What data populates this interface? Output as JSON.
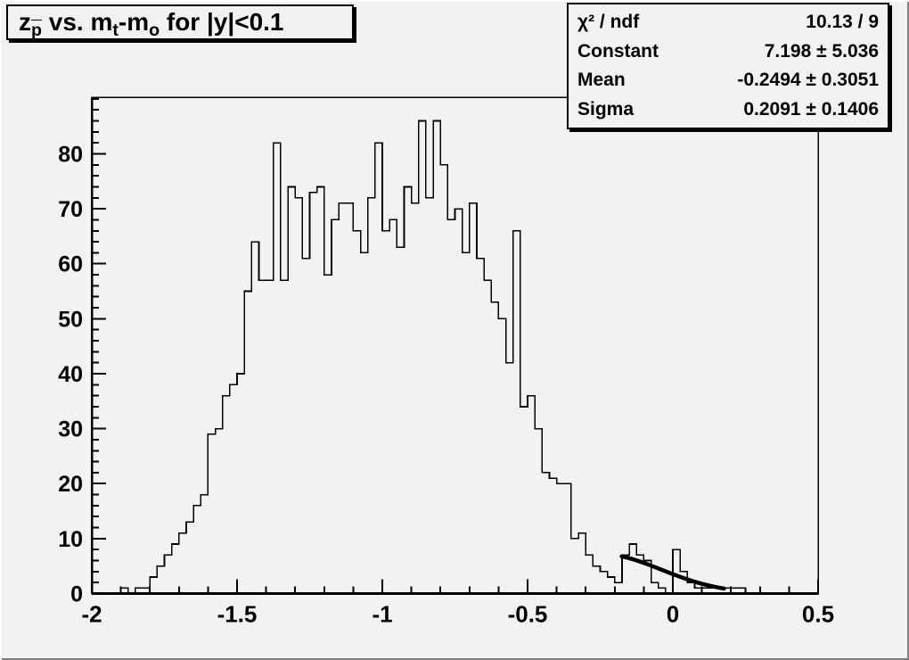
{
  "window": {
    "background": "#f2f2f2",
    "box_fill": "#f2f2f2",
    "line_color": "#000000"
  },
  "title": {
    "plain": "z_p vs. m_t-m_o for |y|<0.1",
    "parts": [
      {
        "text": "z"
      },
      {
        "text": "p",
        "sub": true,
        "bar": true
      },
      {
        "text": " vs. m"
      },
      {
        "text": "t",
        "sub": true
      },
      {
        "text": "-m"
      },
      {
        "text": "o",
        "sub": true
      },
      {
        "text": " for |y|<0.1"
      }
    ]
  },
  "stats_box": {
    "rows": [
      {
        "label": "χ² / ndf",
        "value": "10.13 / 9"
      },
      {
        "label": "Constant",
        "value": "7.198 ± 5.036"
      },
      {
        "label": "Mean",
        "value": "-0.2494 ± 0.3051"
      },
      {
        "label": "Sigma",
        "value": "0.2091 ± 0.1406"
      }
    ]
  },
  "chart_data": {
    "type": "bar",
    "subtype": "step-histogram-with-gaussian-fit",
    "title": "z_p vs. m_t-m_o for |y|<0.1",
    "xlabel": "",
    "ylabel": "",
    "xlim": [
      -2.0,
      0.5
    ],
    "ylim": [
      0,
      90.3
    ],
    "grid": false,
    "x_start": -2.0,
    "bin_width": 0.025,
    "n_bins": 100,
    "values": [
      0,
      0,
      0,
      0,
      1,
      0,
      1,
      1,
      3,
      5,
      7,
      9,
      11,
      13,
      16,
      18,
      29,
      30,
      36,
      38,
      40,
      55,
      64,
      57,
      57,
      82,
      57,
      74,
      72,
      61,
      73,
      74,
      58,
      68,
      71,
      71,
      66,
      62,
      72,
      82,
      66,
      68,
      63,
      74,
      71,
      86,
      72,
      86,
      78,
      68,
      70,
      62,
      71,
      61,
      57,
      53,
      50,
      42,
      66,
      34,
      36,
      30,
      22,
      21,
      20,
      20,
      10,
      11,
      7,
      5,
      4,
      3,
      2,
      7,
      9,
      7,
      6,
      2,
      1,
      0,
      8,
      4,
      2,
      1,
      1,
      1,
      1,
      1,
      1,
      1,
      0,
      0,
      0,
      0,
      0,
      0,
      0,
      0,
      0,
      0
    ],
    "x_major_ticks": [
      -2,
      -1.5,
      -1,
      -0.5,
      0,
      0.5
    ],
    "x_tick_labels": [
      "-2",
      "-1.5",
      "-1",
      "-0.5",
      "0",
      "0.5"
    ],
    "x_minor_step": 0.1,
    "y_major_ticks": [
      0,
      10,
      20,
      30,
      40,
      50,
      60,
      70,
      80
    ],
    "y_tick_labels": [
      "0",
      "10",
      "20",
      "30",
      "40",
      "50",
      "60",
      "70",
      "80"
    ],
    "y_minor_step": 2,
    "fit": {
      "type": "gaussian",
      "constant": 7.198,
      "mean": -0.2494,
      "sigma": 0.2091,
      "draw_range": [
        -0.176,
        0.177
      ],
      "line_width": 4.5
    }
  }
}
